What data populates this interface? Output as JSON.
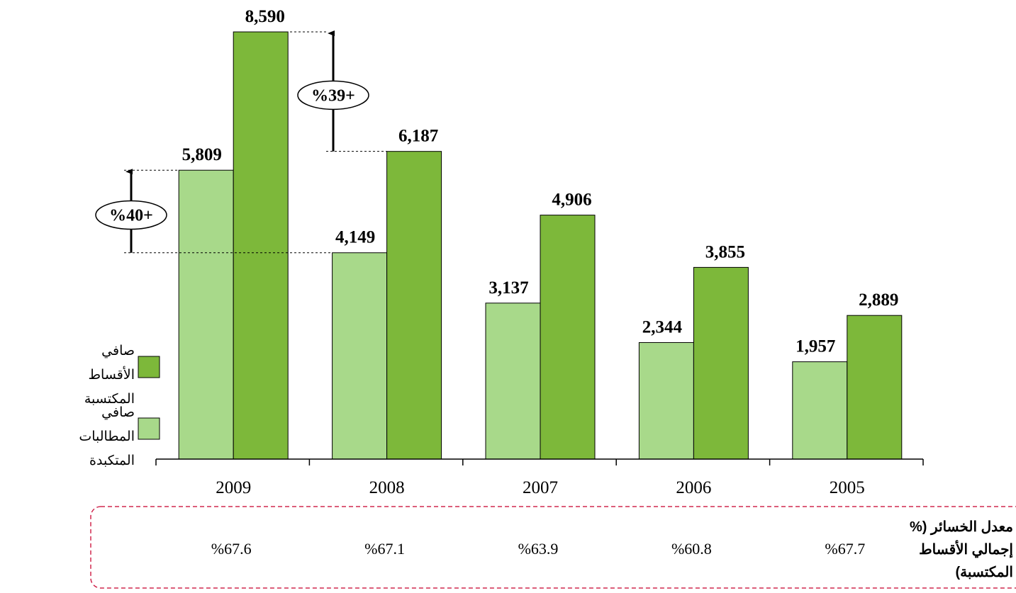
{
  "chart_data": {
    "type": "bar",
    "categories": [
      "2009",
      "2008",
      "2007",
      "2006",
      "2005"
    ],
    "series": [
      {
        "name": "صافي المطالبات المتكبدة",
        "color": "#a8d98a",
        "values": [
          5809,
          4149,
          3137,
          2344,
          1957
        ],
        "value_labels": [
          "5,809",
          "4,149",
          "3,137",
          "2,344",
          "1,957"
        ]
      },
      {
        "name": "صافي الأقساط المكتسبة",
        "color": "#7db83a",
        "values": [
          8590,
          6187,
          4906,
          3855,
          2889
        ],
        "value_labels": [
          "8,590",
          "6,187",
          "4,906",
          "3,855",
          "2,889"
        ]
      }
    ],
    "annotations": [
      "%40+",
      "%39+"
    ],
    "loss_ratio": {
      "label": "معدل الخسائر (% إجمالي الأقساط المكتسبة)",
      "values": [
        67.6,
        67.1,
        63.9,
        60.8,
        67.7
      ],
      "value_labels": [
        "%67.6",
        "%67.1",
        "%63.9",
        "%60.8",
        "%67.7"
      ]
    }
  }
}
